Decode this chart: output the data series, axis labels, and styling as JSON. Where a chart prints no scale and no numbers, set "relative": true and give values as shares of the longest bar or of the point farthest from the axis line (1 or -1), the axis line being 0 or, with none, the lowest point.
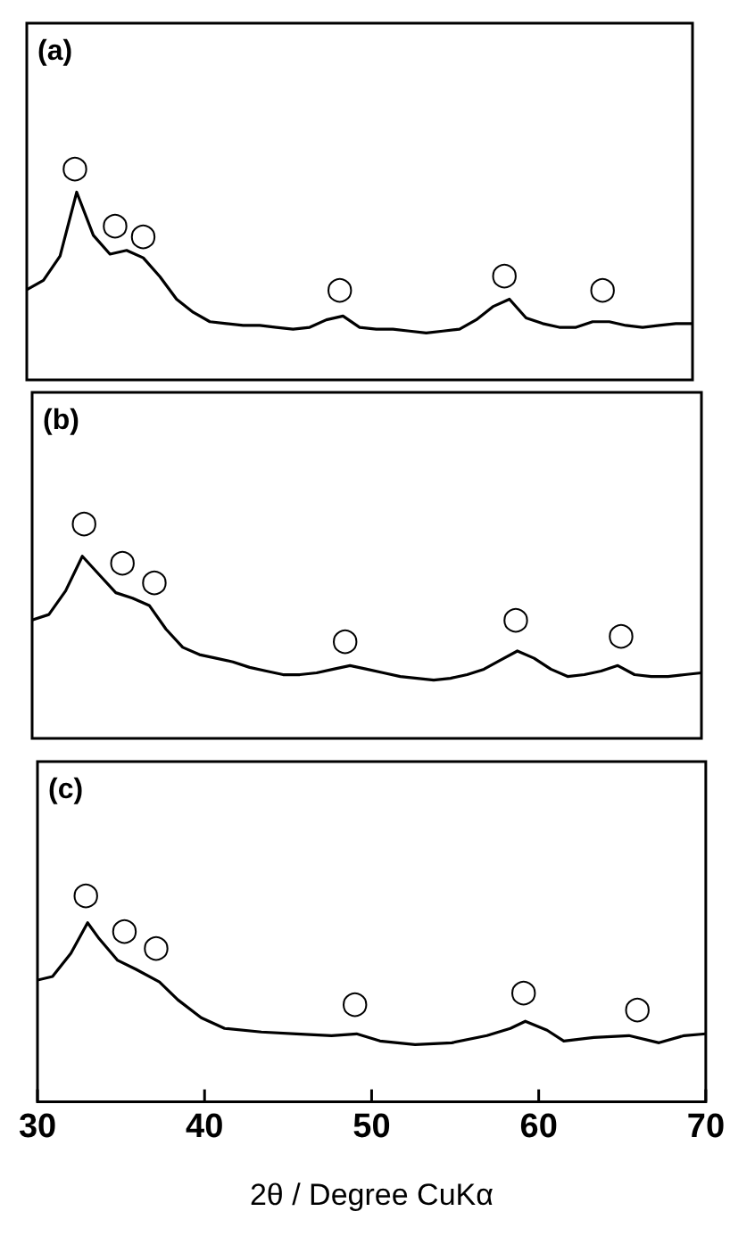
{
  "chart_data": [
    {
      "type": "line",
      "title": "(a)",
      "relative": true,
      "tick_labels": false,
      "categories": [
        null,
        null,
        null,
        null,
        null,
        null,
        null,
        null,
        null,
        null,
        null,
        null,
        null,
        null,
        null,
        null,
        null,
        null,
        null,
        null,
        null,
        null,
        null,
        null,
        null,
        null,
        null,
        null,
        null,
        null,
        null,
        null,
        null,
        null,
        null,
        null,
        null,
        null,
        null,
        null,
        null
      ],
      "series": [
        {
          "color": "#000000",
          "marker": "none",
          "values": [
            0.48,
            0.53,
            0.66,
            1,
            0.77,
            0.67,
            0.69,
            0.65,
            0.55,
            0.43,
            0.36,
            0.31,
            0.3,
            0.29,
            0.29,
            0.28,
            0.27,
            0.28,
            0.32,
            0.34,
            0.28,
            0.27,
            0.27,
            0.26,
            0.25,
            0.26,
            0.27,
            0.32,
            0.39,
            0.43,
            0.33,
            0.3,
            0.28,
            0.28,
            0.31,
            0.31,
            0.29,
            0.28,
            0.29,
            0.3,
            0.3
          ]
        }
      ],
      "annotations": [
        "○",
        "○",
        "○",
        "○",
        "○",
        "○"
      ]
    },
    {
      "type": "line",
      "title": "(b)",
      "relative": true,
      "tick_labels": false,
      "categories": [
        null,
        null,
        null,
        null,
        null,
        null,
        null,
        null,
        null,
        null,
        null,
        null,
        null,
        null,
        null,
        null,
        null,
        null,
        null,
        null,
        null,
        null,
        null,
        null,
        null,
        null,
        null,
        null,
        null,
        null,
        null,
        null,
        null,
        null,
        null,
        null,
        null,
        null,
        null,
        null,
        null
      ],
      "series": [
        {
          "color": "#000000",
          "marker": "none",
          "values": [
            0.65,
            0.68,
            0.81,
            1,
            0.9,
            0.8,
            0.77,
            0.73,
            0.6,
            0.5,
            0.46,
            0.44,
            0.42,
            0.39,
            0.37,
            0.35,
            0.35,
            0.36,
            0.38,
            0.4,
            0.38,
            0.36,
            0.34,
            0.33,
            0.32,
            0.33,
            0.35,
            0.38,
            0.43,
            0.48,
            0.44,
            0.38,
            0.34,
            0.35,
            0.37,
            0.4,
            0.35,
            0.34,
            0.34,
            0.35,
            0.36
          ]
        }
      ],
      "annotations": [
        "○",
        "○",
        "○",
        "○",
        "○",
        "○"
      ]
    },
    {
      "type": "line",
      "title": "(c)",
      "xlabel": "2θ / Degree CuKα",
      "relative": true,
      "xlim": [
        30,
        70
      ],
      "xticks": [
        30,
        40,
        50,
        60,
        70
      ],
      "tick_labels": "x",
      "series": [
        {
          "color": "#000000",
          "marker": "none",
          "x": [
            30,
            30.9,
            32,
            33,
            33.7,
            34.8,
            35.9,
            37.3,
            38.4,
            39.8,
            41.2,
            43.4,
            45.5,
            47.6,
            49.1,
            50.5,
            52.6,
            54.8,
            56.9,
            58.3,
            59.2,
            60.5,
            61.5,
            63.3,
            65.4,
            67.2,
            68.7,
            70
          ],
          "values": [
            0.68,
            0.7,
            0.83,
            1,
            0.91,
            0.79,
            0.74,
            0.67,
            0.57,
            0.47,
            0.41,
            0.39,
            0.38,
            0.37,
            0.38,
            0.34,
            0.32,
            0.33,
            0.37,
            0.41,
            0.45,
            0.4,
            0.34,
            0.36,
            0.37,
            0.33,
            0.37,
            0.38
          ]
        }
      ],
      "annotations": [
        "○",
        "○",
        "○",
        "○",
        "○",
        "○"
      ]
    }
  ]
}
